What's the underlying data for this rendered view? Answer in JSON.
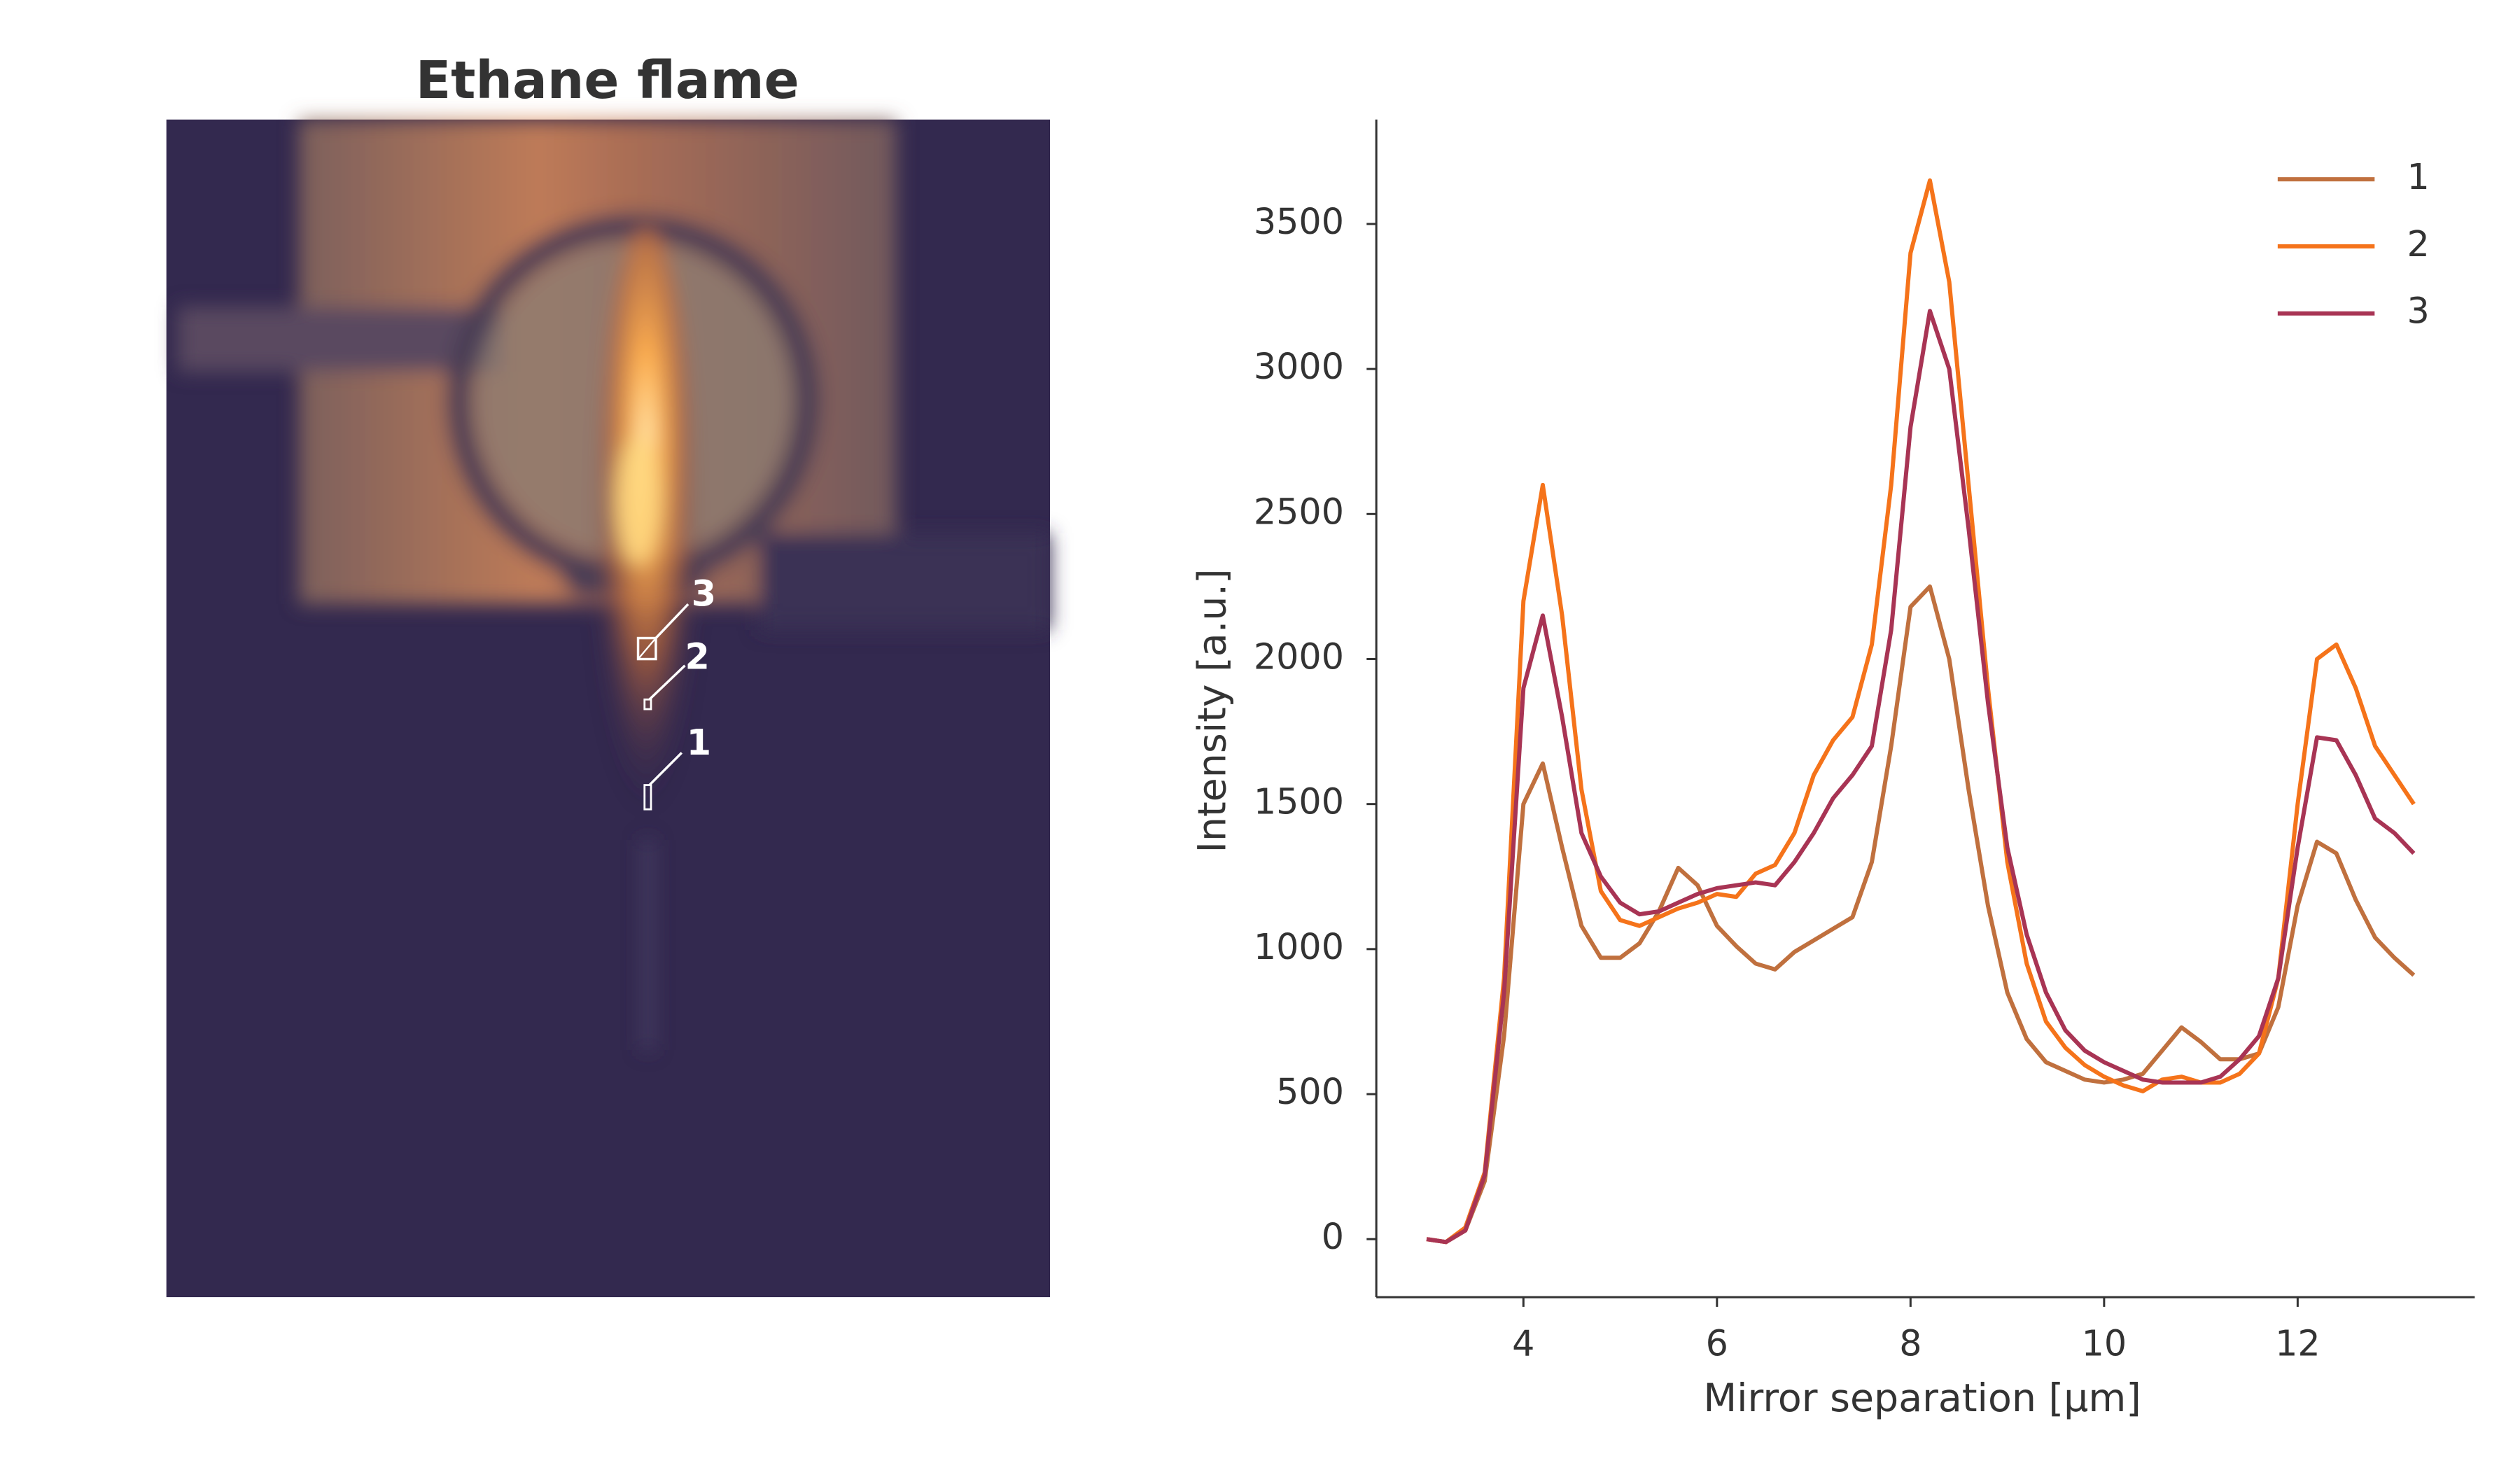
{
  "chart_data": [
    {
      "type": "image",
      "title": "Ethane flame"
    },
    {
      "type": "line",
      "xlabel": "Mirror separation [µm]",
      "ylabel": "Intensity [a.u.]",
      "x": [
        3.0,
        3.2,
        3.4,
        3.6,
        3.8,
        4.0,
        4.2,
        4.4,
        4.6,
        4.8,
        5.0,
        5.2,
        5.4,
        5.6,
        5.8,
        6.0,
        6.2,
        6.4,
        6.6,
        6.8,
        7.0,
        7.2,
        7.4,
        7.6,
        7.8,
        8.0,
        8.2,
        8.4,
        8.6,
        8.8,
        9.0,
        9.2,
        9.4,
        9.6,
        9.8,
        10.0,
        10.2,
        10.4,
        10.6,
        10.8,
        11.0,
        11.2,
        11.4,
        11.6,
        11.8,
        12.0,
        12.2,
        12.4,
        12.6,
        12.8,
        13.0,
        13.2
      ],
      "series": [
        {
          "name": "1",
          "color": "#c0703e",
          "values": [
            0,
            -10,
            30,
            200,
            700,
            1500,
            1640,
            1350,
            1080,
            970,
            970,
            1020,
            1130,
            1280,
            1220,
            1080,
            1010,
            950,
            930,
            990,
            1030,
            1070,
            1110,
            1300,
            1700,
            2180,
            2250,
            2000,
            1550,
            1150,
            850,
            690,
            610,
            580,
            550,
            540,
            550,
            570,
            650,
            730,
            680,
            620,
            620,
            640,
            800,
            1150,
            1370,
            1330,
            1170,
            1040,
            970,
            910
          ]
        },
        {
          "name": "2",
          "color": "#f5731a",
          "values": [
            0,
            -10,
            40,
            230,
            900,
            2200,
            2600,
            2150,
            1550,
            1200,
            1100,
            1080,
            1110,
            1140,
            1160,
            1190,
            1180,
            1260,
            1290,
            1400,
            1600,
            1720,
            1800,
            2050,
            2600,
            3400,
            3650,
            3300,
            2600,
            1900,
            1300,
            950,
            750,
            660,
            600,
            560,
            530,
            510,
            550,
            560,
            540,
            540,
            570,
            640,
            900,
            1500,
            2000,
            2050,
            1900,
            1700,
            1600,
            1500
          ]
        },
        {
          "name": "3",
          "color": "#a83454",
          "values": [
            0,
            -10,
            30,
            220,
            850,
            1900,
            2150,
            1800,
            1400,
            1250,
            1160,
            1120,
            1130,
            1160,
            1190,
            1210,
            1220,
            1230,
            1220,
            1300,
            1400,
            1520,
            1600,
            1700,
            2100,
            2800,
            3200,
            3000,
            2450,
            1850,
            1350,
            1050,
            850,
            720,
            650,
            610,
            580,
            550,
            540,
            540,
            540,
            560,
            620,
            700,
            900,
            1350,
            1730,
            1720,
            1600,
            1450,
            1400,
            1330
          ]
        }
      ],
      "xlim": [
        2.48,
        13.83
      ],
      "ylim": [
        -200,
        3860
      ],
      "xticks": [
        4,
        6,
        8,
        10,
        12
      ],
      "yticks": [
        0,
        500,
        1000,
        1500,
        2000,
        2500,
        3000,
        3500
      ],
      "legend": "upper right"
    }
  ]
}
